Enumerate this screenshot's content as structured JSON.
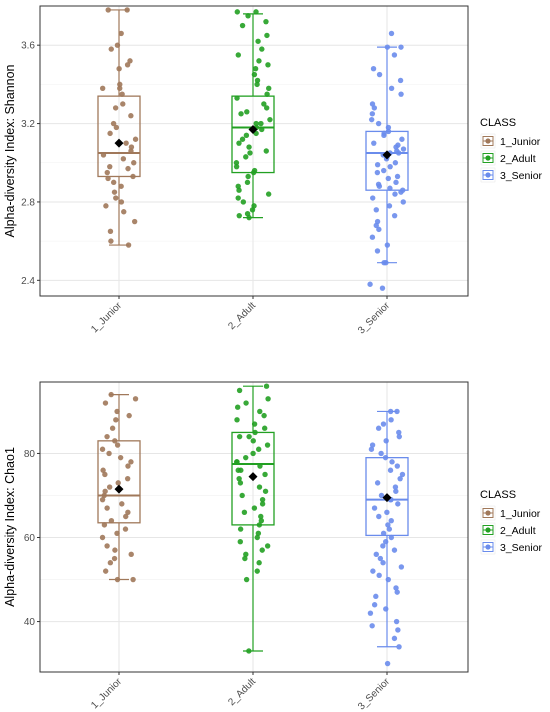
{
  "chart_data": [
    {
      "type": "box",
      "ylabel": "Alpha-diversity Index: Shannon",
      "ylim": [
        2.32,
        3.8
      ],
      "yticks": [
        2.4,
        2.8,
        3.2,
        3.6
      ],
      "ytick_labels": [
        "2.4",
        "2.8",
        "3.2",
        "3.6"
      ],
      "grid": true,
      "legend": {
        "title": "CLASS",
        "placement": "right"
      },
      "categories": [
        "1_Junior",
        "2_Adult",
        "3_Senior"
      ],
      "series": [
        {
          "name": "1_Junior",
          "color": "#A0785A",
          "box": {
            "whisker_low": 2.58,
            "q1": 2.93,
            "median": 3.05,
            "q3": 3.34,
            "whisker_high": 3.78,
            "mean": 3.1
          },
          "points": [
            3.78,
            3.78,
            3.66,
            3.6,
            3.58,
            3.52,
            3.5,
            3.48,
            3.4,
            3.38,
            3.38,
            3.35,
            3.3,
            3.28,
            3.24,
            3.2,
            3.18,
            3.15,
            3.12,
            3.1,
            3.08,
            3.06,
            3.04,
            3.02,
            3.0,
            2.98,
            2.97,
            2.95,
            2.93,
            2.92,
            2.9,
            2.88,
            2.85,
            2.82,
            2.8,
            2.78,
            2.75,
            2.7,
            2.65,
            2.6,
            2.58
          ]
        },
        {
          "name": "2_Adult",
          "color": "#22A022",
          "box": {
            "whisker_low": 2.72,
            "q1": 2.95,
            "median": 3.18,
            "q3": 3.34,
            "whisker_high": 3.76,
            "mean": 3.17
          },
          "points": [
            3.77,
            3.77,
            3.75,
            3.72,
            3.7,
            3.65,
            3.62,
            3.58,
            3.55,
            3.52,
            3.5,
            3.48,
            3.45,
            3.42,
            3.4,
            3.38,
            3.35,
            3.33,
            3.3,
            3.28,
            3.26,
            3.25,
            3.22,
            3.2,
            3.2,
            3.18,
            3.17,
            3.15,
            3.14,
            3.12,
            3.1,
            3.08,
            3.06,
            3.05,
            3.03,
            3.0,
            2.98,
            2.96,
            2.95,
            2.93,
            2.9,
            2.88,
            2.86,
            2.84,
            2.82,
            2.8,
            2.78,
            2.76,
            2.74,
            2.73,
            2.72
          ]
        },
        {
          "name": "3_Senior",
          "color": "#6A8CEC",
          "box": {
            "whisker_low": 2.49,
            "q1": 2.86,
            "median": 3.05,
            "q3": 3.16,
            "whisker_high": 3.59,
            "mean": 3.04
          },
          "points": [
            3.66,
            3.59,
            3.59,
            3.55,
            3.48,
            3.45,
            3.42,
            3.38,
            3.35,
            3.3,
            3.28,
            3.25,
            3.22,
            3.2,
            3.18,
            3.16,
            3.15,
            3.14,
            3.12,
            3.1,
            3.09,
            3.08,
            3.07,
            3.06,
            3.05,
            3.05,
            3.04,
            3.03,
            3.02,
            3.0,
            2.99,
            2.98,
            2.96,
            2.95,
            2.93,
            2.92,
            2.9,
            2.89,
            2.88,
            2.87,
            2.86,
            2.85,
            2.84,
            2.82,
            2.8,
            2.78,
            2.76,
            2.73,
            2.7,
            2.68,
            2.66,
            2.62,
            2.58,
            2.55,
            2.49,
            2.49,
            2.38,
            2.36
          ]
        }
      ]
    },
    {
      "type": "box",
      "ylabel": "Alpha-diversity Index: Chao1",
      "ylim": [
        28,
        97
      ],
      "yticks": [
        40,
        60,
        80
      ],
      "ytick_labels": [
        "40",
        "60",
        "80"
      ],
      "grid": true,
      "legend": {
        "title": "CLASS",
        "placement": "right"
      },
      "categories": [
        "1_Junior",
        "2_Adult",
        "3_Senior"
      ],
      "series": [
        {
          "name": "1_Junior",
          "color": "#A0785A",
          "box": {
            "whisker_low": 50,
            "q1": 63.5,
            "median": 70,
            "q3": 83,
            "whisker_high": 94,
            "mean": 71.5
          },
          "points": [
            94,
            93,
            92,
            90,
            89,
            88,
            86,
            84,
            83,
            82,
            81,
            80,
            79,
            78,
            77,
            76,
            75,
            74,
            73,
            72,
            71,
            70,
            69,
            68,
            67,
            66,
            65,
            64,
            63,
            62,
            61,
            60,
            58,
            57,
            56,
            55,
            54,
            52,
            50,
            50
          ]
        },
        {
          "name": "2_Adult",
          "color": "#22A022",
          "box": {
            "whisker_low": 33,
            "q1": 63,
            "median": 77.5,
            "q3": 85,
            "whisker_high": 96,
            "mean": 74.5
          },
          "points": [
            96,
            95,
            93,
            92,
            91,
            90,
            89,
            88,
            87,
            86,
            85,
            84,
            84,
            83,
            82,
            81,
            80,
            79,
            78,
            78,
            77,
            76,
            76,
            75,
            74,
            73,
            72,
            71,
            70,
            69,
            68,
            67,
            66,
            65,
            64,
            63,
            62,
            61,
            60,
            59,
            58,
            57,
            56,
            55,
            54,
            52,
            50,
            33
          ]
        },
        {
          "name": "3_Senior",
          "color": "#6A8CEC",
          "box": {
            "whisker_low": 34,
            "q1": 60.5,
            "median": 69,
            "q3": 79,
            "whisker_high": 90,
            "mean": 69.5
          },
          "points": [
            90,
            90,
            88,
            87,
            86,
            85,
            84,
            83,
            82,
            81,
            80,
            79,
            78,
            77,
            76,
            75,
            74,
            73,
            72,
            71,
            70,
            69,
            69,
            68,
            67,
            66,
            65,
            64,
            63,
            62,
            61,
            60,
            59,
            58,
            57,
            56,
            55,
            54,
            53,
            52,
            51,
            50,
            48,
            47,
            46,
            44,
            43,
            42,
            40,
            39,
            38,
            36,
            34,
            30
          ]
        }
      ]
    }
  ]
}
